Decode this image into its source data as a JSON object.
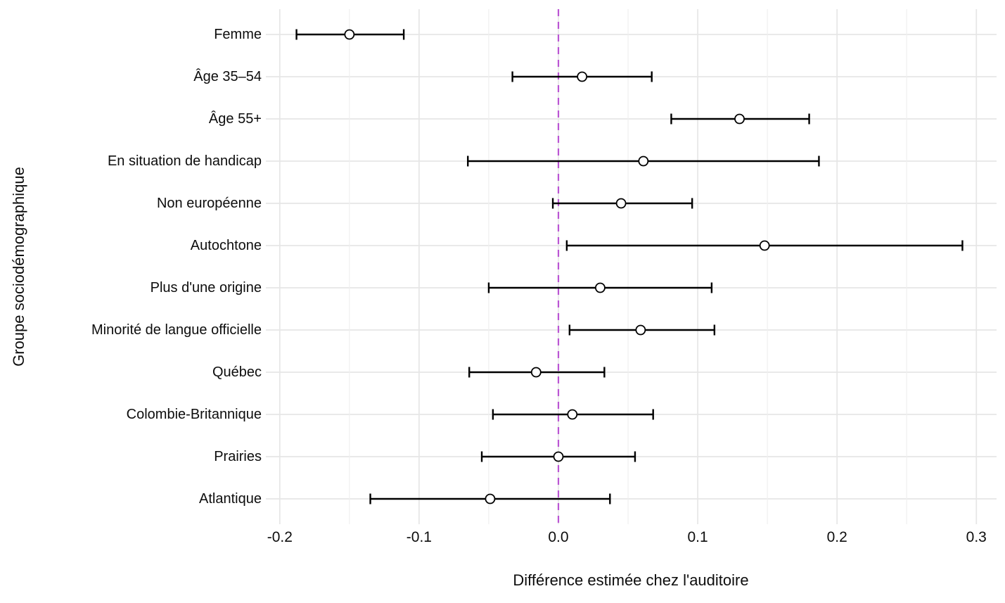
{
  "figure": {
    "background": "#ffffff",
    "text_color": "#0d0d0d"
  },
  "chart_data": {
    "type": "scatter",
    "subtype": "forest-plot-dot-whisker",
    "title": "",
    "xlabel": "Différence estimée chez l'auditoire",
    "ylabel": "Groupe sociodémographique",
    "xlim": [
      -0.21,
      0.3145
    ],
    "x_ticks": [
      -0.2,
      -0.1,
      0.0,
      0.1,
      0.2,
      0.3
    ],
    "x_tick_labels": [
      "-0.2",
      "-0.1",
      "0.0",
      "0.1",
      "0.2",
      "0.3"
    ],
    "x_minor_ticks": [
      -0.15,
      -0.05,
      0.05,
      0.15,
      0.25
    ],
    "grid": "on",
    "legend": "none",
    "reference_line": {
      "x": 0,
      "style": "dashed",
      "color": "#ba55d3"
    },
    "point_style": {
      "shape": "open-circle",
      "stroke": "#000000",
      "fill": "#ffffff"
    },
    "error_bar_color": "#000000",
    "grid_major_color": "#e6e6e6",
    "grid_minor_color": "#efefef",
    "rows": [
      {
        "label": "Femme",
        "estimate": -0.15,
        "ci_low": -0.188,
        "ci_high": -0.111
      },
      {
        "label": "Âge 35–54",
        "estimate": 0.017,
        "ci_low": -0.033,
        "ci_high": 0.067
      },
      {
        "label": "Âge 55+",
        "estimate": 0.13,
        "ci_low": 0.081,
        "ci_high": 0.18
      },
      {
        "label": "En situation de handicap",
        "estimate": 0.061,
        "ci_low": -0.065,
        "ci_high": 0.187
      },
      {
        "label": "Non européenne",
        "estimate": 0.045,
        "ci_low": -0.004,
        "ci_high": 0.096
      },
      {
        "label": "Autochtone",
        "estimate": 0.148,
        "ci_low": 0.006,
        "ci_high": 0.29
      },
      {
        "label": "Plus d'une origine",
        "estimate": 0.03,
        "ci_low": -0.05,
        "ci_high": 0.11
      },
      {
        "label": "Minorité de langue officielle",
        "estimate": 0.059,
        "ci_low": 0.008,
        "ci_high": 0.112
      },
      {
        "label": "Québec",
        "estimate": -0.016,
        "ci_low": -0.064,
        "ci_high": 0.033
      },
      {
        "label": "Colombie-Britannique",
        "estimate": 0.01,
        "ci_low": -0.047,
        "ci_high": 0.068
      },
      {
        "label": "Prairies",
        "estimate": 0.0,
        "ci_low": -0.055,
        "ci_high": 0.055
      },
      {
        "label": "Atlantique",
        "estimate": -0.049,
        "ci_low": -0.135,
        "ci_high": 0.037
      }
    ]
  }
}
